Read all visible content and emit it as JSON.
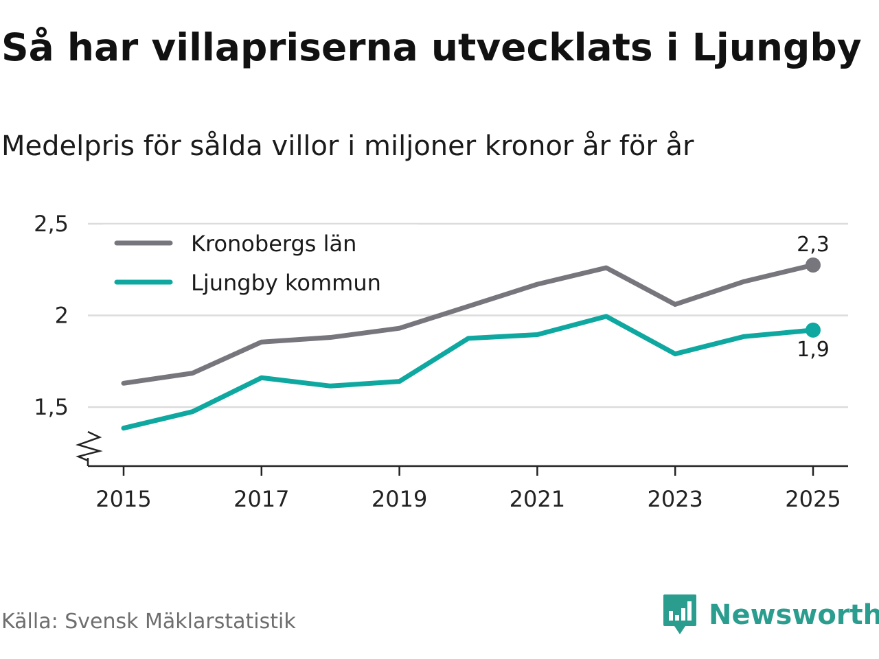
{
  "title": "Så har villapriserna utvecklats i Ljungby",
  "subtitle": "Medelpris för sålda villor i miljoner kronor år för år",
  "source": "Källa: Svensk Mäklarstatistik",
  "brand": {
    "name": "Newsworthy",
    "color": "#2a9d8f",
    "icon": "newsworthy-logo-icon"
  },
  "colors": {
    "gray_series": "#77767c",
    "teal_series": "#0ea8a0",
    "grid": "#dcdcdc",
    "axis": "#222222"
  },
  "chart_data": {
    "type": "line",
    "title": "Så har villapriserna utvecklats i Ljungby",
    "subtitle": "Medelpris för sålda villor i miljoner kronor år för år",
    "xlabel": "",
    "ylabel": "",
    "x": [
      2015,
      2016,
      2017,
      2018,
      2019,
      2020,
      2021,
      2022,
      2023,
      2024,
      2025
    ],
    "x_ticks": [
      "2015",
      "2017",
      "2019",
      "2021",
      "2023",
      "2025"
    ],
    "y_ticks": [
      1.5,
      2,
      2.5
    ],
    "y_tick_labels": [
      "1,5",
      "2",
      "2,5"
    ],
    "ylim": [
      1.18,
      2.5
    ],
    "axis_break": true,
    "grid": true,
    "legend_position": "top-left",
    "series": [
      {
        "name": "Kronobergs län",
        "color": "#77767c",
        "values": [
          1.63,
          1.685,
          1.855,
          1.88,
          1.93,
          2.05,
          2.17,
          2.26,
          2.06,
          2.185,
          2.275
        ],
        "end_label": "2,3"
      },
      {
        "name": "Ljungby kommun",
        "color": "#0ea8a0",
        "values": [
          1.385,
          1.475,
          1.66,
          1.615,
          1.64,
          1.875,
          1.895,
          1.995,
          1.79,
          1.885,
          1.92
        ],
        "end_label": "1,9"
      }
    ]
  }
}
